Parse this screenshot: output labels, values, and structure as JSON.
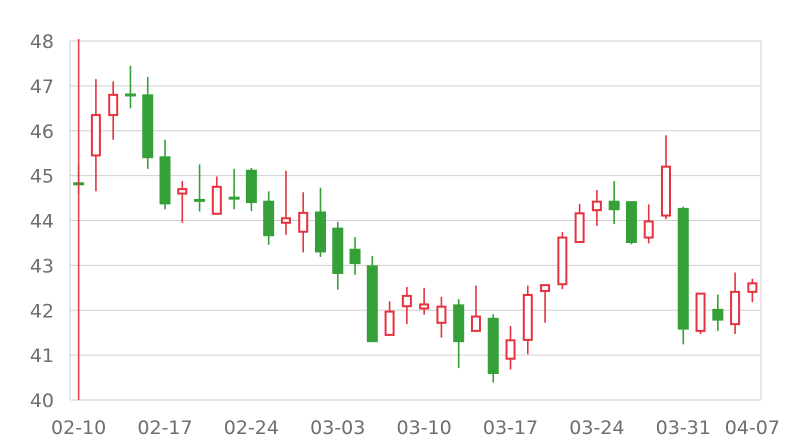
{
  "chart_data": {
    "type": "candlestick",
    "title": "",
    "xlabel": "",
    "ylabel": "",
    "ylim": [
      40,
      48
    ],
    "yticks": [
      "40",
      "41",
      "42",
      "43",
      "44",
      "45",
      "46",
      "47",
      "48"
    ],
    "xtick_labels": [
      "02-10",
      "02-17",
      "02-24",
      "03-03",
      "03-10",
      "03-17",
      "03-24",
      "03-31",
      "04-07"
    ],
    "grid": true,
    "up_color": "#e5323e",
    "down_color": "#36a038",
    "marker_line": {
      "date": "02-10",
      "color": "#e5323e"
    },
    "candles": [
      {
        "date": "02-10",
        "open": 44.84,
        "close": 44.8,
        "low": 44.6,
        "high": 45.25
      },
      {
        "date": "02-11",
        "open": 45.45,
        "close": 46.35,
        "low": 44.65,
        "high": 47.15
      },
      {
        "date": "02-12",
        "open": 46.35,
        "close": 46.8,
        "low": 45.8,
        "high": 47.1
      },
      {
        "date": "02-13",
        "open": 46.82,
        "close": 46.78,
        "low": 46.5,
        "high": 47.45
      },
      {
        "date": "02-14",
        "open": 46.8,
        "close": 45.4,
        "low": 45.15,
        "high": 47.2
      },
      {
        "date": "02-17",
        "open": 45.42,
        "close": 44.37,
        "low": 44.25,
        "high": 45.8
      },
      {
        "date": "02-18",
        "open": 44.6,
        "close": 44.7,
        "low": 43.95,
        "high": 44.88
      },
      {
        "date": "02-19",
        "open": 44.47,
        "close": 44.43,
        "low": 44.2,
        "high": 45.25
      },
      {
        "date": "02-20",
        "open": 44.15,
        "close": 44.75,
        "low": 44.15,
        "high": 44.98
      },
      {
        "date": "02-21",
        "open": 44.52,
        "close": 44.48,
        "low": 44.25,
        "high": 45.15
      },
      {
        "date": "02-24",
        "open": 45.12,
        "close": 44.4,
        "low": 44.21,
        "high": 45.17
      },
      {
        "date": "02-25",
        "open": 44.43,
        "close": 43.66,
        "low": 43.46,
        "high": 44.65
      },
      {
        "date": "02-26",
        "open": 43.95,
        "close": 44.05,
        "low": 43.68,
        "high": 45.11
      },
      {
        "date": "02-27",
        "open": 43.75,
        "close": 44.17,
        "low": 43.29,
        "high": 44.63
      },
      {
        "date": "02-28",
        "open": 44.19,
        "close": 43.3,
        "low": 43.19,
        "high": 44.73
      },
      {
        "date": "03-03",
        "open": 43.83,
        "close": 42.82,
        "low": 42.46,
        "high": 43.97
      },
      {
        "date": "03-04",
        "open": 43.36,
        "close": 43.04,
        "low": 42.79,
        "high": 43.63
      },
      {
        "date": "03-05",
        "open": 42.99,
        "close": 41.3,
        "low": 41.3,
        "high": 43.21
      },
      {
        "date": "03-06",
        "open": 41.45,
        "close": 41.97,
        "low": 41.45,
        "high": 42.2
      },
      {
        "date": "03-07",
        "open": 42.09,
        "close": 42.32,
        "low": 41.69,
        "high": 42.52
      },
      {
        "date": "03-10",
        "open": 42.04,
        "close": 42.13,
        "low": 41.9,
        "high": 42.5
      },
      {
        "date": "03-11",
        "open": 41.72,
        "close": 42.08,
        "low": 41.39,
        "high": 42.3
      },
      {
        "date": "03-12",
        "open": 42.12,
        "close": 41.3,
        "low": 40.71,
        "high": 42.25
      },
      {
        "date": "03-13",
        "open": 41.54,
        "close": 41.86,
        "low": 41.54,
        "high": 42.55
      },
      {
        "date": "03-14",
        "open": 41.82,
        "close": 40.59,
        "low": 40.39,
        "high": 41.91
      },
      {
        "date": "03-17",
        "open": 40.92,
        "close": 41.33,
        "low": 40.68,
        "high": 41.65
      },
      {
        "date": "03-18",
        "open": 41.34,
        "close": 42.34,
        "low": 41.02,
        "high": 42.55
      },
      {
        "date": "03-19",
        "open": 42.43,
        "close": 42.56,
        "low": 41.72,
        "high": 42.56
      },
      {
        "date": "03-20",
        "open": 42.58,
        "close": 43.62,
        "low": 42.47,
        "high": 43.74
      },
      {
        "date": "03-21",
        "open": 43.52,
        "close": 44.16,
        "low": 43.5,
        "high": 44.37
      },
      {
        "date": "03-24",
        "open": 44.23,
        "close": 44.42,
        "low": 43.88,
        "high": 44.68
      },
      {
        "date": "03-25",
        "open": 44.43,
        "close": 44.24,
        "low": 43.92,
        "high": 44.88
      },
      {
        "date": "03-26",
        "open": 44.42,
        "close": 43.51,
        "low": 43.47,
        "high": 44.42
      },
      {
        "date": "03-27",
        "open": 43.62,
        "close": 43.98,
        "low": 43.49,
        "high": 44.36
      },
      {
        "date": "03-28",
        "open": 44.11,
        "close": 45.2,
        "low": 44.03,
        "high": 45.9
      },
      {
        "date": "03-31",
        "open": 44.27,
        "close": 41.58,
        "low": 41.24,
        "high": 44.31
      },
      {
        "date": "04-01",
        "open": 41.54,
        "close": 42.37,
        "low": 41.47,
        "high": 42.37
      },
      {
        "date": "04-02",
        "open": 42.02,
        "close": 41.78,
        "low": 41.54,
        "high": 42.35
      },
      {
        "date": "04-03",
        "open": 41.69,
        "close": 42.41,
        "low": 41.47,
        "high": 42.84
      },
      {
        "date": "04-07",
        "open": 42.41,
        "close": 42.6,
        "low": 42.18,
        "high": 42.7
      }
    ]
  }
}
